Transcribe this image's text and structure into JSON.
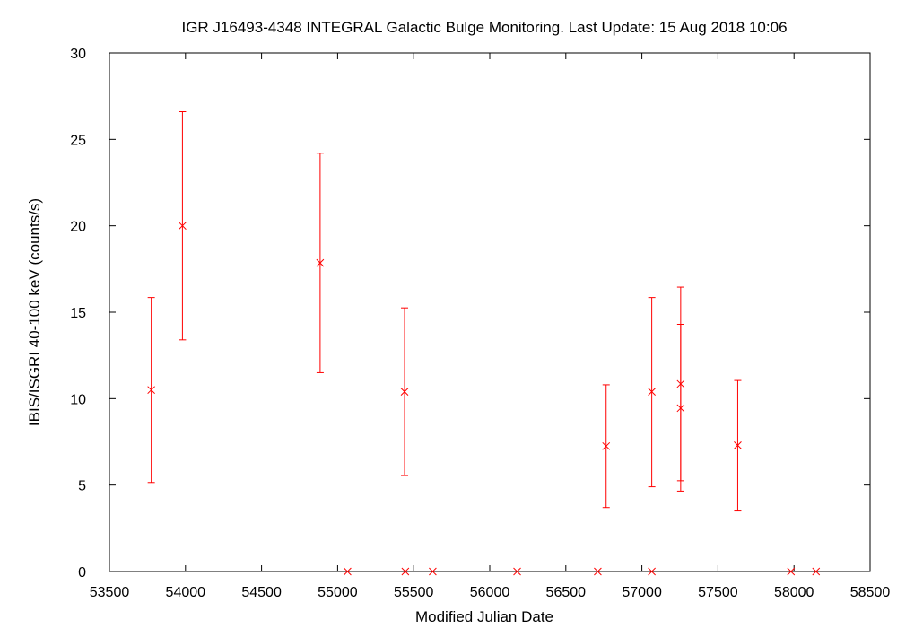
{
  "chart_data": {
    "type": "scatter",
    "title": "IGR J16493-4348   INTEGRAL Galactic Bulge Monitoring.  Last Update: 15 Aug 2018 10:06",
    "xlabel": "Modified Julian Date",
    "ylabel": "IBIS/ISGRI 40-100 keV (counts/s)",
    "xlim": [
      53500,
      58500
    ],
    "ylim": [
      0,
      30
    ],
    "xticks": [
      53500,
      54000,
      54500,
      55000,
      55500,
      56000,
      56500,
      57000,
      57500,
      58000,
      58500
    ],
    "yticks": [
      0,
      5,
      10,
      15,
      20,
      25,
      30
    ],
    "grid": false,
    "legend": "none",
    "color": "#ff0000",
    "points": [
      {
        "x": 53775,
        "y": 10.5,
        "ylo": 5.15,
        "yhi": 15.85
      },
      {
        "x": 53980,
        "y": 20.0,
        "ylo": 13.4,
        "yhi": 26.6
      },
      {
        "x": 54885,
        "y": 17.85,
        "ylo": 11.5,
        "yhi": 24.2
      },
      {
        "x": 55065,
        "y": 0.0
      },
      {
        "x": 55440,
        "y": 10.4,
        "ylo": 5.55,
        "yhi": 15.25
      },
      {
        "x": 55445,
        "y": 0.0
      },
      {
        "x": 55625,
        "y": 0.0
      },
      {
        "x": 56180,
        "y": 0.0
      },
      {
        "x": 56710,
        "y": 0.0
      },
      {
        "x": 56765,
        "y": 7.25,
        "ylo": 3.7,
        "yhi": 10.8
      },
      {
        "x": 57065,
        "y": 10.4,
        "ylo": 4.9,
        "yhi": 15.85
      },
      {
        "x": 57065,
        "y": 0.0
      },
      {
        "x": 57255,
        "y": 10.85,
        "ylo": 5.25,
        "yhi": 16.45
      },
      {
        "x": 57255,
        "y": 9.45,
        "ylo": 4.65,
        "yhi": 14.3
      },
      {
        "x": 57630,
        "y": 7.3,
        "ylo": 3.5,
        "yhi": 11.05
      },
      {
        "x": 57980,
        "y": 0.0
      },
      {
        "x": 58145,
        "y": 0.0
      }
    ]
  }
}
